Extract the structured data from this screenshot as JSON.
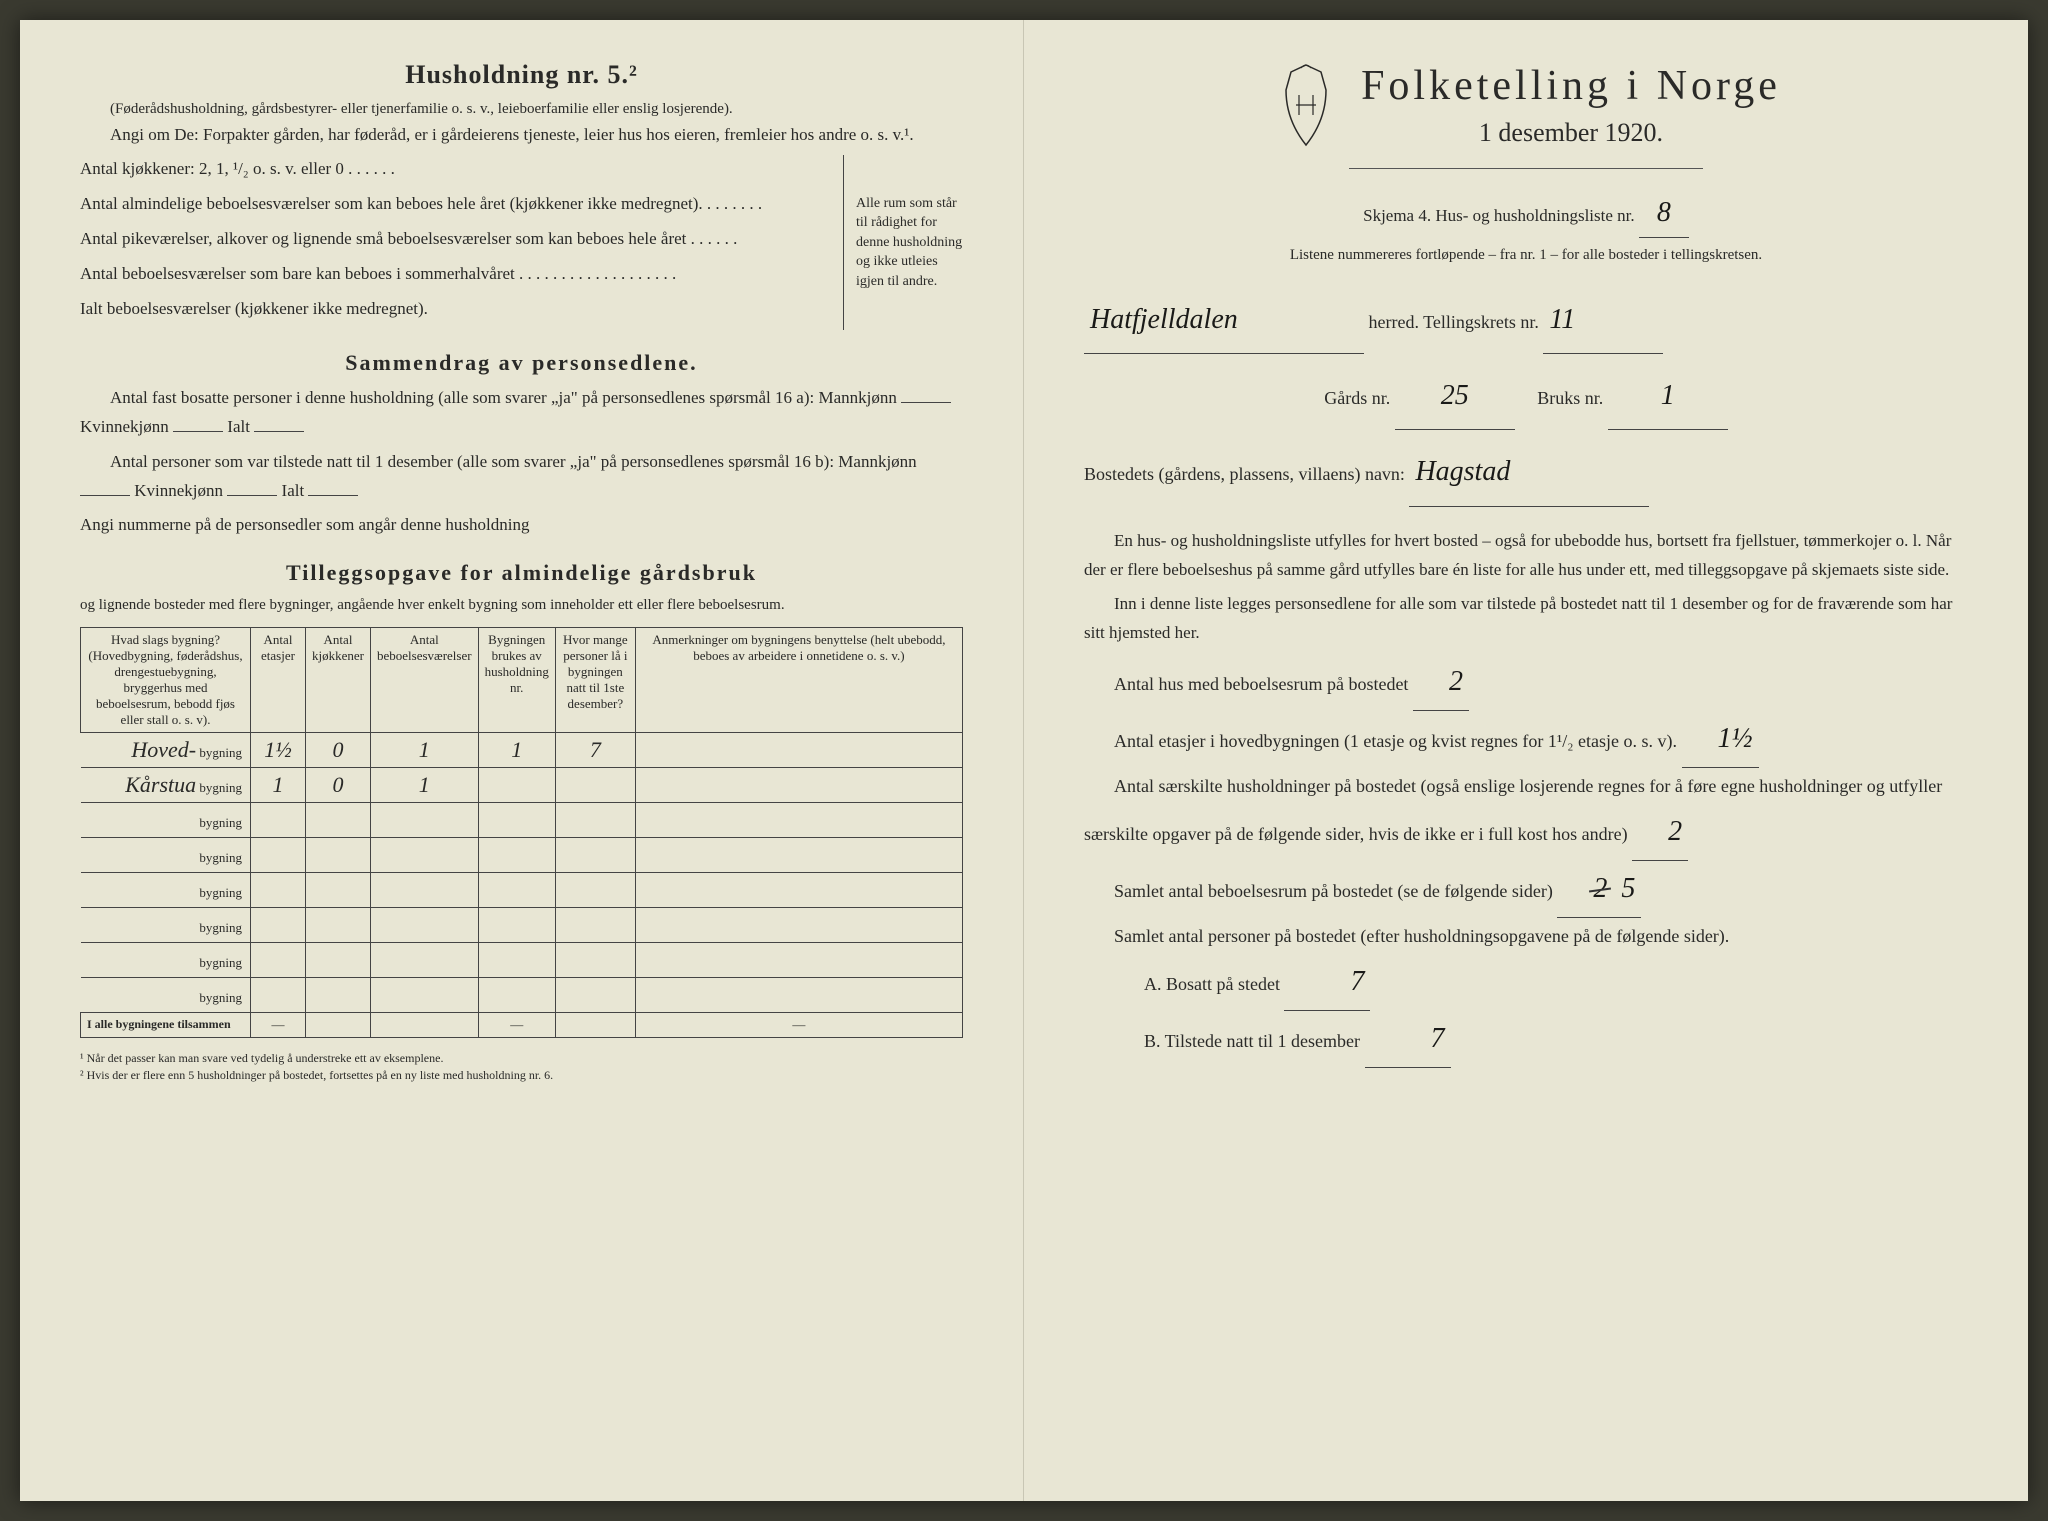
{
  "left": {
    "household_heading": "Husholdning nr. 5.²",
    "household_sub": "(Føderådshusholdning, gårdsbestyrer- eller tjenerfamilie o. s. v., leieboerfamilie eller enslig losjerende).",
    "angi_line": "Angi om De: Forpakter gården, har føderåd, er i gårdeierens tjeneste, leier hus hos eieren, fremleier hos andre o. s. v.¹.",
    "kitchens_line": "Antal kjøkkener: 2, 1, ¹/₂ o. s. v. eller 0 . . . . . .",
    "rooms_a": "Antal almindelige beboelsesværelser som kan beboes hele året (kjøkkener ikke medregnet). . . . . . . .",
    "rooms_b": "Antal pikeværelser, alkover og lignende små beboelsesværelser som kan beboes hele året . . . . . .",
    "rooms_c": "Antal beboelsesværelser som bare kan beboes i sommerhalvåret . . . . . . . . . . . . . . . . . . .",
    "rooms_total": "Ialt beboelsesværelser (kjøkkener ikke medregnet).",
    "brace_text": "Alle rum som står til rådighet for denne husholdning og ikke utleies igjen til andre.",
    "summary_heading": "Sammendrag av personsedlene.",
    "summary_p1": "Antal fast bosatte personer i denne husholdning (alle som svarer „ja\" på personsedlenes spørsmål 16 a): Mannkjønn",
    "summary_p1b": "Kvinnekjønn",
    "summary_p1c": "Ialt",
    "summary_p2": "Antal personer som var tilstede natt til 1 desember (alle som svarer „ja\" på personsedlenes spørsmål 16 b): Mannkjønn",
    "summary_note": "Angi nummerne på de personsedler som angår denne husholdning",
    "tillegg_heading": "Tilleggsopgave for almindelige gårdsbruk",
    "tillegg_sub": "og lignende bosteder med flere bygninger, angående hver enkelt bygning som inneholder ett eller flere beboelsesrum.",
    "table": {
      "h1": "Hvad slags bygning?\n(Hovedbygning, føderådshus, drengestuebygning, bryggerhus med beboelsesrum, bebodd fjøs eller stall o. s. v).",
      "h2": "Antal etasjer",
      "h3": "Antal kjøkkener",
      "h4": "Antal beboelsesværelser",
      "h5": "Bygningen brukes av husholdning nr.",
      "h6": "Hvor mange personer lå i bygningen natt til 1ste desember?",
      "h7": "Anmerkninger om bygningens benyttelse (helt ubebodd, beboes av arbeidere i onnetidene o. s. v.)",
      "rows": [
        {
          "name": "Hoved-",
          "suffix": "bygning",
          "etasjer": "1½",
          "kjokk": "0",
          "beb": "1",
          "hush": "1",
          "pers": "7",
          "anm": ""
        },
        {
          "name": "Kårstua",
          "suffix": "bygning",
          "etasjer": "1",
          "kjokk": "0",
          "beb": "1",
          "hush": "",
          "pers": "",
          "anm": ""
        },
        {
          "name": "",
          "suffix": "bygning",
          "etasjer": "",
          "kjokk": "",
          "beb": "",
          "hush": "",
          "pers": "",
          "anm": ""
        },
        {
          "name": "",
          "suffix": "bygning",
          "etasjer": "",
          "kjokk": "",
          "beb": "",
          "hush": "",
          "pers": "",
          "anm": ""
        },
        {
          "name": "",
          "suffix": "bygning",
          "etasjer": "",
          "kjokk": "",
          "beb": "",
          "hush": "",
          "pers": "",
          "anm": ""
        },
        {
          "name": "",
          "suffix": "bygning",
          "etasjer": "",
          "kjokk": "",
          "beb": "",
          "hush": "",
          "pers": "",
          "anm": ""
        },
        {
          "name": "",
          "suffix": "bygning",
          "etasjer": "",
          "kjokk": "",
          "beb": "",
          "hush": "",
          "pers": "",
          "anm": ""
        },
        {
          "name": "",
          "suffix": "bygning",
          "etasjer": "",
          "kjokk": "",
          "beb": "",
          "hush": "",
          "pers": "",
          "anm": ""
        }
      ],
      "total_label": "I alle bygningene tilsammen",
      "dash": "—"
    },
    "footnote1": "¹ Når det passer kan man svare ved tydelig å understreke ett av eksemplene.",
    "footnote2": "² Hvis der er flere enn 5 husholdninger på bostedet, fortsettes på en ny liste med husholdning nr. 6."
  },
  "right": {
    "title": "Folketelling i Norge",
    "date": "1 desember 1920.",
    "skjema_line": "Skjema 4.  Hus- og husholdningsliste nr.",
    "skjema_nr": "8",
    "listene_line": "Listene nummereres fortløpende – fra nr. 1 – for alle bosteder i tellingskretsen.",
    "herred_value": "Hatfjelldalen",
    "herred_label": "herred.   Tellingskrets nr.",
    "krets_nr": "11",
    "gaards_label": "Gårds nr.",
    "gaards_nr": "25",
    "bruks_label": "Bruks nr.",
    "bruks_nr": "1",
    "bosted_label": "Bostedets (gårdens, plassens, villaens) navn:",
    "bosted_name": "Hagstad",
    "instr1": "En hus- og husholdningsliste utfylles for hvert bosted – også for ubebodde hus, bortsett fra fjellstuer, tømmerkojer o. l.  Når der er flere beboelseshus på samme gård utfylles bare én liste for alle hus under ett, med tilleggsopgave på skjemaets siste side.",
    "instr2": "Inn i denne liste legges personsedlene for alle som var tilstede på bostedet natt til 1 desember og for de fraværende som har sitt hjemsted her.",
    "q1_label": "Antal hus med beboelsesrum på bostedet",
    "q1_value": "2",
    "q2_label": "Antal etasjer i hovedbygningen (1 etasje og kvist regnes for 1¹/₂ etasje o. s. v).",
    "q2_value": "1½",
    "q3_label": "Antal særskilte husholdninger på bostedet (også enslige losjerende regnes for å føre egne husholdninger og utfyller særskilte opgaver på de følgende sider, hvis de ikke er i full kost hos andre)",
    "q3_value": "2",
    "q4_label": "Samlet antal beboelsesrum på bostedet (se de følgende sider)",
    "q4_value_struck": "2",
    "q4_value_new": "5",
    "q5_label": "Samlet antal personer på bostedet (efter husholdningsopgavene på de følgende sider).",
    "q5a_label": "A.  Bosatt på stedet",
    "q5a_value": "7",
    "q5b_label": "B.  Tilstede natt til 1 desember",
    "q5b_value": "7"
  },
  "colors": {
    "paper": "#e8e6d4",
    "ink": "#2a2a28",
    "hw": "#1a1a18"
  }
}
